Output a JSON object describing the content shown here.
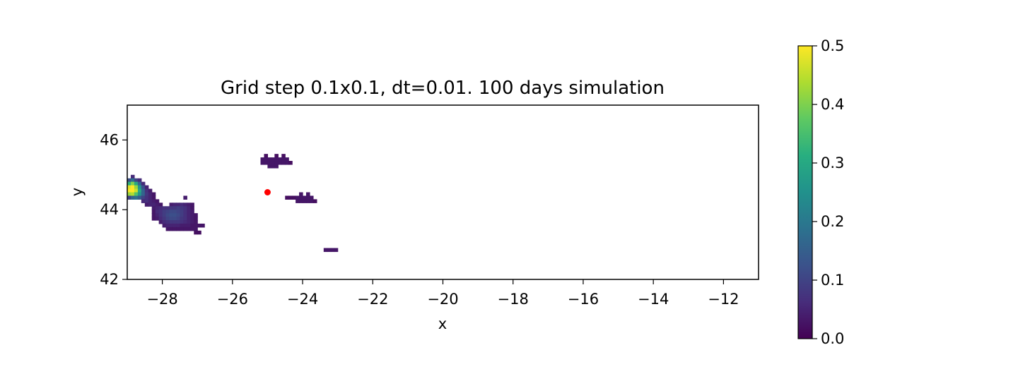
{
  "chart_data": {
    "type": "heatmap",
    "title": "Grid step 0.1x0.1, dt=0.01. 100 days simulation",
    "xlabel": "x",
    "ylabel": "y",
    "xlim": [
      -29,
      -11
    ],
    "ylim": [
      42,
      47
    ],
    "xticks": [
      "−28",
      "−26",
      "−24",
      "−22",
      "−20",
      "−18",
      "−16",
      "−14",
      "−12"
    ],
    "xtick_values": [
      -28,
      -26,
      -24,
      -22,
      -20,
      -18,
      -16,
      -14,
      -12
    ],
    "yticks": [
      "42",
      "44",
      "46"
    ],
    "ytick_values": [
      42,
      44,
      46
    ],
    "grid": false,
    "cell_size": 0.1,
    "colormap": "viridis",
    "colorbar": {
      "range": [
        0,
        0.5
      ],
      "ticks": [
        "0.0",
        "0.1",
        "0.2",
        "0.3",
        "0.4",
        "0.5"
      ],
      "tick_values": [
        0,
        0.1,
        0.2,
        0.3,
        0.4,
        0.5
      ]
    },
    "marker": {
      "x": -25.0,
      "y": 44.5,
      "color": "#ff0000"
    },
    "cells": [
      [
        -29.0,
        44.8,
        0.12
      ],
      [
        -28.9,
        44.9,
        0.06
      ],
      [
        -28.9,
        44.8,
        0.18
      ],
      [
        -28.8,
        44.8,
        0.1
      ],
      [
        -28.7,
        44.8,
        0.06
      ],
      [
        -29.0,
        44.7,
        0.32
      ],
      [
        -28.9,
        44.7,
        0.4
      ],
      [
        -28.8,
        44.7,
        0.3
      ],
      [
        -28.7,
        44.7,
        0.16
      ],
      [
        -28.6,
        44.7,
        0.06
      ],
      [
        -29.0,
        44.6,
        0.48
      ],
      [
        -28.9,
        44.6,
        0.5
      ],
      [
        -28.8,
        44.6,
        0.42
      ],
      [
        -28.7,
        44.6,
        0.26
      ],
      [
        -28.6,
        44.6,
        0.12
      ],
      [
        -28.5,
        44.6,
        0.05
      ],
      [
        -29.0,
        44.5,
        0.5
      ],
      [
        -28.9,
        44.5,
        0.5
      ],
      [
        -28.8,
        44.5,
        0.46
      ],
      [
        -28.7,
        44.5,
        0.3
      ],
      [
        -28.6,
        44.5,
        0.16
      ],
      [
        -28.5,
        44.5,
        0.07
      ],
      [
        -28.4,
        44.5,
        0.04
      ],
      [
        -29.0,
        44.4,
        0.42
      ],
      [
        -28.9,
        44.4,
        0.44
      ],
      [
        -28.8,
        44.4,
        0.36
      ],
      [
        -28.7,
        44.4,
        0.26
      ],
      [
        -28.6,
        44.4,
        0.16
      ],
      [
        -28.5,
        44.4,
        0.08
      ],
      [
        -28.4,
        44.4,
        0.05
      ],
      [
        -28.3,
        44.4,
        0.03
      ],
      [
        -29.0,
        44.3,
        0.1
      ],
      [
        -28.9,
        44.3,
        0.16
      ],
      [
        -28.8,
        44.3,
        0.18
      ],
      [
        -28.7,
        44.3,
        0.14
      ],
      [
        -28.6,
        44.3,
        0.1
      ],
      [
        -28.5,
        44.3,
        0.07
      ],
      [
        -28.4,
        44.3,
        0.05
      ],
      [
        -28.3,
        44.3,
        0.03
      ],
      [
        -28.6,
        44.2,
        0.06
      ],
      [
        -28.5,
        44.2,
        0.07
      ],
      [
        -28.4,
        44.2,
        0.05
      ],
      [
        -28.3,
        44.2,
        0.04
      ],
      [
        -28.2,
        44.2,
        0.03
      ],
      [
        -27.4,
        44.3,
        0.04
      ],
      [
        -28.5,
        44.1,
        0.04
      ],
      [
        -28.4,
        44.1,
        0.05
      ],
      [
        -28.3,
        44.1,
        0.05
      ],
      [
        -28.2,
        44.1,
        0.04
      ],
      [
        -28.1,
        44.1,
        0.03
      ],
      [
        -27.8,
        44.1,
        0.04
      ],
      [
        -27.7,
        44.1,
        0.05
      ],
      [
        -27.6,
        44.1,
        0.05
      ],
      [
        -27.5,
        44.1,
        0.06
      ],
      [
        -27.4,
        44.1,
        0.05
      ],
      [
        -27.3,
        44.1,
        0.04
      ],
      [
        -27.2,
        44.1,
        0.03
      ],
      [
        -28.3,
        44.0,
        0.04
      ],
      [
        -28.2,
        44.0,
        0.05
      ],
      [
        -28.1,
        44.0,
        0.06
      ],
      [
        -28.0,
        44.0,
        0.07
      ],
      [
        -27.9,
        44.0,
        0.07
      ],
      [
        -27.8,
        44.0,
        0.08
      ],
      [
        -27.7,
        44.0,
        0.08
      ],
      [
        -27.6,
        44.0,
        0.09
      ],
      [
        -27.5,
        44.0,
        0.08
      ],
      [
        -27.4,
        44.0,
        0.07
      ],
      [
        -27.3,
        44.0,
        0.05
      ],
      [
        -27.2,
        44.0,
        0.03
      ],
      [
        -28.3,
        43.9,
        0.03
      ],
      [
        -28.2,
        43.9,
        0.06
      ],
      [
        -28.1,
        43.9,
        0.07
      ],
      [
        -28.0,
        43.9,
        0.09
      ],
      [
        -27.9,
        43.9,
        0.1
      ],
      [
        -27.8,
        43.9,
        0.11
      ],
      [
        -27.7,
        43.9,
        0.11
      ],
      [
        -27.6,
        43.9,
        0.1
      ],
      [
        -27.5,
        43.9,
        0.09
      ],
      [
        -27.4,
        43.9,
        0.07
      ],
      [
        -27.3,
        43.9,
        0.05
      ],
      [
        -27.2,
        43.9,
        0.04
      ],
      [
        -28.3,
        43.8,
        0.03
      ],
      [
        -28.2,
        43.8,
        0.05
      ],
      [
        -28.1,
        43.8,
        0.07
      ],
      [
        -28.0,
        43.8,
        0.09
      ],
      [
        -27.9,
        43.8,
        0.11
      ],
      [
        -27.8,
        43.8,
        0.12
      ],
      [
        -27.7,
        43.8,
        0.12
      ],
      [
        -27.6,
        43.8,
        0.11
      ],
      [
        -27.5,
        43.8,
        0.09
      ],
      [
        -27.4,
        43.8,
        0.07
      ],
      [
        -27.3,
        43.8,
        0.05
      ],
      [
        -27.2,
        43.8,
        0.04
      ],
      [
        -27.1,
        43.8,
        0.03
      ],
      [
        -28.3,
        43.7,
        0.03
      ],
      [
        -28.2,
        43.7,
        0.04
      ],
      [
        -28.1,
        43.7,
        0.06
      ],
      [
        -28.0,
        43.7,
        0.08
      ],
      [
        -27.9,
        43.7,
        0.1
      ],
      [
        -27.8,
        43.7,
        0.11
      ],
      [
        -27.7,
        43.7,
        0.11
      ],
      [
        -27.6,
        43.7,
        0.1
      ],
      [
        -27.5,
        43.7,
        0.08
      ],
      [
        -27.4,
        43.7,
        0.07
      ],
      [
        -27.3,
        43.7,
        0.05
      ],
      [
        -27.2,
        43.7,
        0.04
      ],
      [
        -27.1,
        43.7,
        0.03
      ],
      [
        -28.1,
        43.6,
        0.04
      ],
      [
        -28.0,
        43.6,
        0.06
      ],
      [
        -27.9,
        43.6,
        0.07
      ],
      [
        -27.8,
        43.6,
        0.08
      ],
      [
        -27.7,
        43.6,
        0.08
      ],
      [
        -27.6,
        43.6,
        0.08
      ],
      [
        -27.5,
        43.6,
        0.07
      ],
      [
        -27.4,
        43.6,
        0.06
      ],
      [
        -27.3,
        43.6,
        0.05
      ],
      [
        -27.2,
        43.6,
        0.04
      ],
      [
        -27.1,
        43.6,
        0.03
      ],
      [
        -28.0,
        43.5,
        0.04
      ],
      [
        -27.9,
        43.5,
        0.05
      ],
      [
        -27.8,
        43.5,
        0.05
      ],
      [
        -27.7,
        43.5,
        0.05
      ],
      [
        -27.6,
        43.5,
        0.05
      ],
      [
        -27.5,
        43.5,
        0.04
      ],
      [
        -27.4,
        43.5,
        0.04
      ],
      [
        -27.3,
        43.5,
        0.04
      ],
      [
        -27.2,
        43.5,
        0.03
      ],
      [
        -27.1,
        43.5,
        0.03
      ],
      [
        -27.0,
        43.5,
        0.03
      ],
      [
        -26.9,
        43.5,
        0.03
      ],
      [
        -27.9,
        43.4,
        0.03
      ],
      [
        -27.8,
        43.4,
        0.03
      ],
      [
        -27.7,
        43.4,
        0.03
      ],
      [
        -27.6,
        43.4,
        0.03
      ],
      [
        -27.5,
        43.4,
        0.03
      ],
      [
        -27.4,
        43.4,
        0.03
      ],
      [
        -27.3,
        43.4,
        0.03
      ],
      [
        -27.2,
        43.4,
        0.03
      ],
      [
        -27.1,
        43.4,
        0.03
      ],
      [
        -27.1,
        43.3,
        0.02
      ],
      [
        -27.0,
        43.3,
        0.02
      ],
      [
        -25.1,
        45.5,
        0.02
      ],
      [
        -24.6,
        45.5,
        0.02
      ],
      [
        -24.8,
        45.5,
        0.02
      ],
      [
        -25.2,
        45.4,
        0.03
      ],
      [
        -25.1,
        45.4,
        0.03
      ],
      [
        -25.0,
        45.4,
        0.03
      ],
      [
        -24.9,
        45.4,
        0.03
      ],
      [
        -24.8,
        45.4,
        0.03
      ],
      [
        -24.7,
        45.4,
        0.03
      ],
      [
        -24.6,
        45.4,
        0.03
      ],
      [
        -24.5,
        45.4,
        0.03
      ],
      [
        -25.2,
        45.3,
        0.03
      ],
      [
        -25.1,
        45.3,
        0.03
      ],
      [
        -25.0,
        45.3,
        0.03
      ],
      [
        -24.9,
        45.3,
        0.03
      ],
      [
        -24.8,
        45.3,
        0.03
      ],
      [
        -24.7,
        45.3,
        0.03
      ],
      [
        -24.6,
        45.3,
        0.03
      ],
      [
        -24.5,
        45.3,
        0.03
      ],
      [
        -24.4,
        45.3,
        0.02
      ],
      [
        -25.0,
        45.2,
        0.03
      ],
      [
        -24.9,
        45.2,
        0.03
      ],
      [
        -24.8,
        45.2,
        0.03
      ],
      [
        -24.1,
        44.4,
        0.03
      ],
      [
        -23.9,
        44.4,
        0.03
      ],
      [
        -24.5,
        44.3,
        0.02
      ],
      [
        -24.4,
        44.3,
        0.02
      ],
      [
        -24.3,
        44.3,
        0.02
      ],
      [
        -24.2,
        44.3,
        0.03
      ],
      [
        -24.1,
        44.3,
        0.03
      ],
      [
        -24.0,
        44.3,
        0.03
      ],
      [
        -23.9,
        44.3,
        0.03
      ],
      [
        -23.8,
        44.3,
        0.03
      ],
      [
        -24.2,
        44.2,
        0.03
      ],
      [
        -24.1,
        44.2,
        0.03
      ],
      [
        -24.0,
        44.2,
        0.03
      ],
      [
        -23.9,
        44.2,
        0.03
      ],
      [
        -23.8,
        44.2,
        0.03
      ],
      [
        -23.7,
        44.2,
        0.02
      ],
      [
        -23.4,
        42.8,
        0.03
      ],
      [
        -23.3,
        42.8,
        0.03
      ],
      [
        -23.2,
        42.8,
        0.03
      ],
      [
        -23.1,
        42.8,
        0.03
      ]
    ]
  }
}
